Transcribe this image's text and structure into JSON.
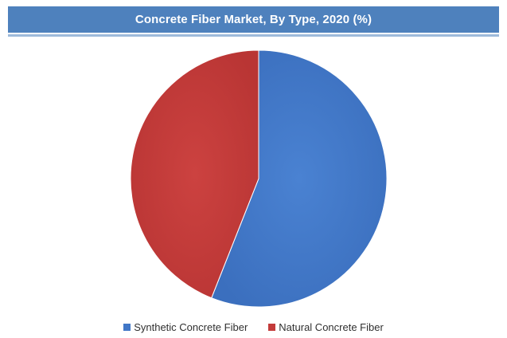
{
  "header": {
    "title": "Concrete Fiber Market, By Type, 2020 (%)"
  },
  "chart_data": {
    "type": "pie",
    "title": "Concrete Fiber Market, By Type, 2020 (%)",
    "categories": [
      "Synthetic Concrete Fiber",
      "Natural Concrete Fiber"
    ],
    "values": [
      56,
      44
    ],
    "colors": [
      "#4177c7",
      "#c33b3a"
    ],
    "start_angle_deg": 0,
    "direction": "clockwise",
    "legend_position": "bottom",
    "data_labels": false
  },
  "legend": {
    "items": [
      {
        "label": "Synthetic Concrete Fiber",
        "color": "#4177c7"
      },
      {
        "label": "Natural Concrete Fiber",
        "color": "#c33b3a"
      }
    ]
  }
}
